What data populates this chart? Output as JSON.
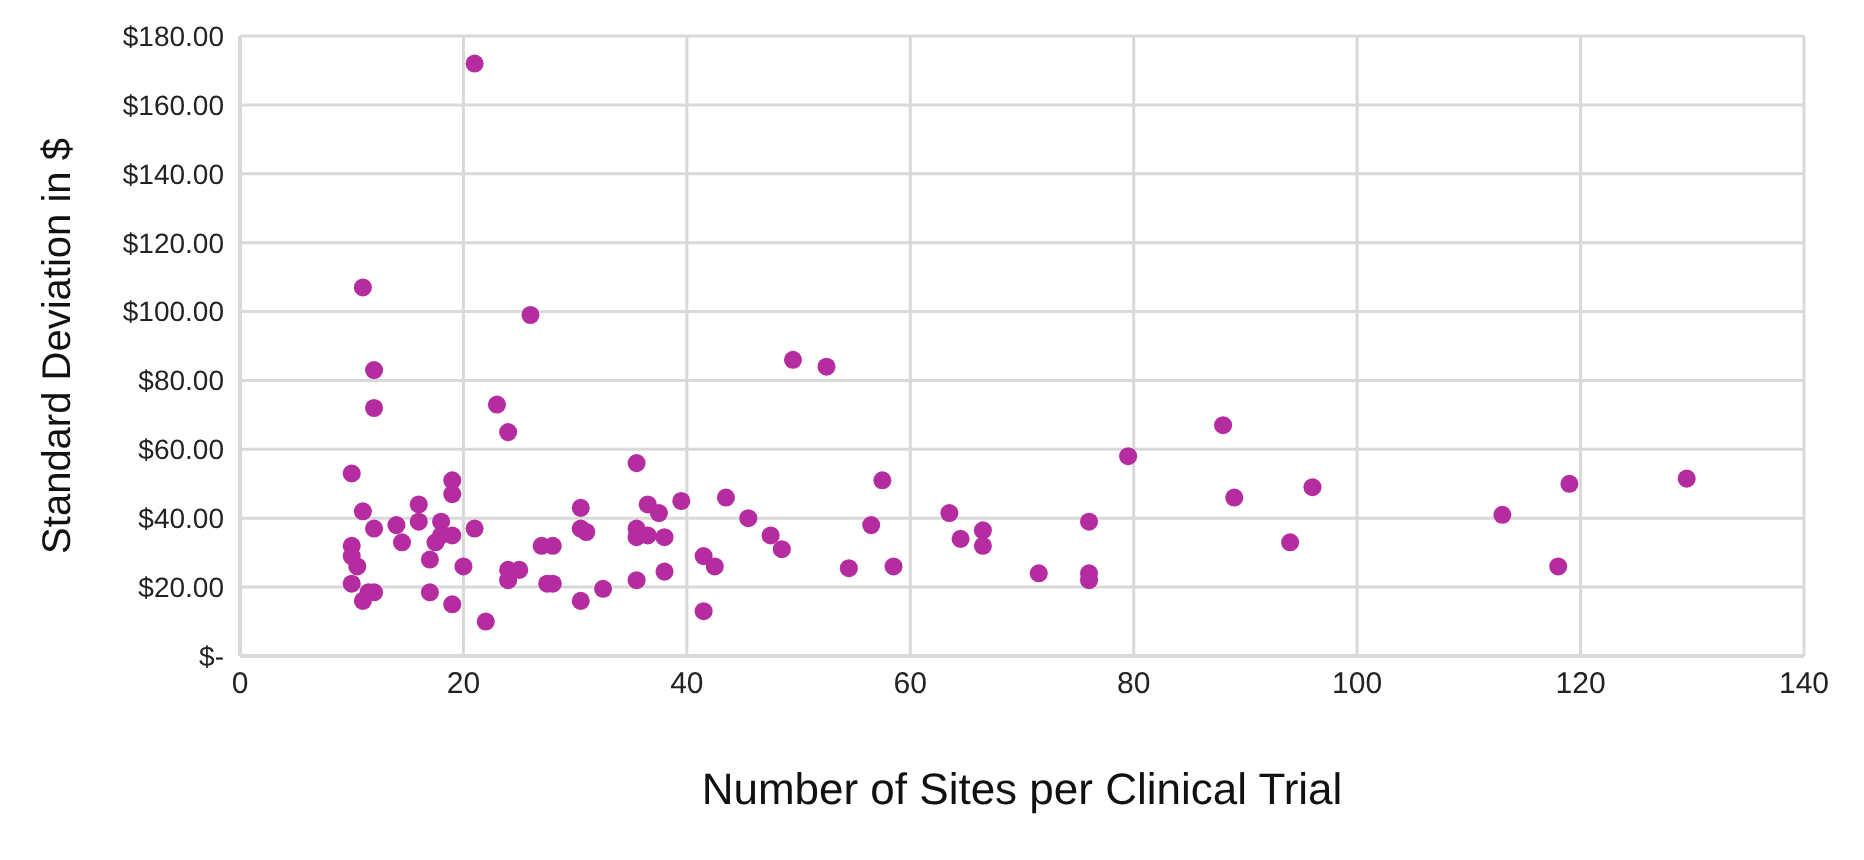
{
  "chart_data": {
    "type": "scatter",
    "xlabel": "Number of Sites per Clinical Trial",
    "ylabel": "Standard Deviation in $",
    "xlim": [
      0,
      140
    ],
    "xticks": [
      0,
      20,
      40,
      60,
      80,
      100,
      120,
      140
    ],
    "ylim": [
      0,
      180
    ],
    "yticks": [
      {
        "value": 0,
        "label": "$-"
      },
      {
        "value": 20,
        "label": "$20.00"
      },
      {
        "value": 40,
        "label": "$40.00"
      },
      {
        "value": 60,
        "label": "$60.00"
      },
      {
        "value": 80,
        "label": "$80.00"
      },
      {
        "value": 100,
        "label": "$100.00"
      },
      {
        "value": 120,
        "label": "$120.00"
      },
      {
        "value": 140,
        "label": "$140.00"
      },
      {
        "value": 160,
        "label": "$160.00"
      },
      {
        "value": 180,
        "label": "$180.00"
      }
    ],
    "grid": true,
    "marker": "circle",
    "legend": false,
    "series": [
      {
        "color": "#b52ba0",
        "x": [
          10,
          11,
          12,
          10,
          10,
          10.5,
          10,
          11.5,
          11,
          12,
          14,
          14.5,
          16,
          16,
          18,
          18,
          19,
          17.5,
          17,
          17,
          19,
          19,
          19,
          21,
          20,
          22,
          24,
          24,
          24,
          25,
          27,
          28,
          27.5,
          28,
          30.5,
          30.5,
          31,
          30.5,
          32.5,
          35.5,
          36.5,
          37.5,
          35.5,
          35.5,
          36.5,
          38,
          39.5,
          35.5,
          38,
          41.5,
          42.5,
          41.5,
          43.5,
          45.5,
          47.5,
          48.5,
          54.5,
          56.5,
          57.5,
          58.5,
          63.5,
          64.5,
          66.5,
          66.5,
          11,
          26,
          12,
          12,
          23,
          21,
          49.5,
          52.5,
          71.5,
          76,
          76,
          76,
          79.5,
          88,
          89,
          94,
          96,
          113,
          118,
          119,
          129.5
        ],
        "values": [
          53,
          42,
          37,
          32,
          29,
          26,
          21,
          18.5,
          16,
          18.5,
          38,
          33,
          44,
          39,
          39,
          35,
          35,
          33,
          28,
          18.5,
          15,
          51,
          47,
          37,
          26,
          10,
          65,
          25,
          22,
          25,
          32,
          32,
          21,
          21,
          43,
          37,
          36,
          16,
          19.5,
          56,
          44,
          41.5,
          37,
          34.5,
          35,
          34.5,
          45,
          22,
          24.5,
          29,
          26,
          13,
          46,
          40,
          35,
          31,
          25.5,
          38,
          51,
          26,
          41.5,
          34,
          36.5,
          32,
          107,
          99,
          83,
          72,
          73,
          172,
          86,
          84,
          24,
          39,
          24,
          22,
          58,
          67,
          46,
          33,
          49,
          41,
          26,
          50,
          51.5
        ]
      }
    ]
  }
}
